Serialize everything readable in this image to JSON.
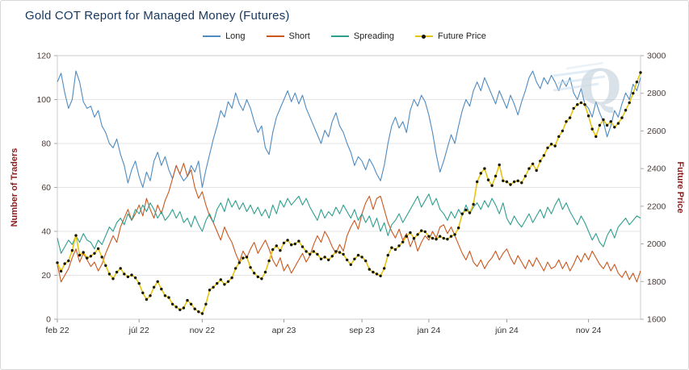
{
  "watermark": {
    "letter": "Q"
  },
  "legend": [
    {
      "label": "Long",
      "color": "#4f8bc0"
    },
    {
      "label": "Short",
      "color": "#c9571d"
    },
    {
      "label": "Spreading",
      "color": "#2f9e8f"
    },
    {
      "label": "Future Price",
      "color": "#e6c510",
      "marker": "#141400"
    }
  ],
  "chart_data": {
    "type": "line",
    "title": "Gold COT Report for Managed Money (Futures)",
    "x_axis": {
      "unit": "weekly COT report dates (feb 2022 - feb 2025)",
      "ticks": [
        {
          "label": "feb 22",
          "index": 0
        },
        {
          "label": "júl 22",
          "index": 22
        },
        {
          "label": "nov 22",
          "index": 39
        },
        {
          "label": "apr 23",
          "index": 61
        },
        {
          "label": "sep 23",
          "index": 82
        },
        {
          "label": "jan 24",
          "index": 100
        },
        {
          "label": "jún 24",
          "index": 121
        },
        {
          "label": "nov 24",
          "index": 143
        }
      ]
    },
    "y_left": {
      "label": "Number of Traders",
      "range": [
        0,
        120
      ],
      "ticks": [
        0,
        20,
        40,
        60,
        80,
        100,
        120
      ]
    },
    "y_right": {
      "label": "Future Price",
      "range": [
        1600,
        3000
      ],
      "ticks": [
        1600,
        1800,
        2000,
        2200,
        2400,
        2600,
        2800,
        3000
      ]
    },
    "grid": "horizontal",
    "legend_position": "top-center",
    "series": [
      {
        "name": "Long",
        "axis": "left",
        "color": "#4f8bc0",
        "width": 1.1,
        "values": [
          108,
          112,
          103,
          96,
          100,
          113,
          108,
          99,
          96,
          97,
          92,
          95,
          88,
          85,
          80,
          78,
          82,
          75,
          70,
          62,
          68,
          72,
          65,
          60,
          67,
          63,
          72,
          76,
          70,
          74,
          68,
          64,
          70,
          66,
          63,
          65,
          70,
          67,
          72,
          60,
          68,
          75,
          82,
          88,
          95,
          92,
          99,
          96,
          103,
          98,
          95,
          100,
          96,
          90,
          85,
          88,
          78,
          75,
          85,
          92,
          96,
          100,
          104,
          99,
          103,
          98,
          102,
          96,
          92,
          88,
          84,
          80,
          86,
          83,
          90,
          94,
          88,
          85,
          80,
          76,
          70,
          74,
          72,
          68,
          73,
          70,
          66,
          63,
          70,
          80,
          88,
          92,
          87,
          90,
          85,
          95,
          100,
          97,
          102,
          99,
          93,
          85,
          75,
          67,
          72,
          78,
          84,
          80,
          88,
          95,
          100,
          97,
          104,
          108,
          104,
          110,
          106,
          102,
          98,
          104,
          100,
          96,
          102,
          98,
          93,
          99,
          104,
          110,
          113,
          108,
          105,
          110,
          107,
          111,
          108,
          104,
          109,
          106,
          110,
          103,
          100,
          105,
          98,
          96,
          92,
          99,
          94,
          90,
          83,
          88,
          95,
          92,
          98,
          103,
          100,
          107,
          104,
          110
        ]
      },
      {
        "name": "Short",
        "axis": "left",
        "color": "#c9571d",
        "width": 1.1,
        "values": [
          25,
          17,
          20,
          23,
          28,
          32,
          26,
          30,
          27,
          24,
          26,
          22,
          25,
          30,
          34,
          38,
          35,
          42,
          46,
          50,
          45,
          48,
          52,
          47,
          55,
          50,
          46,
          52,
          48,
          54,
          58,
          64,
          70,
          66,
          71,
          65,
          68,
          60,
          55,
          58,
          52,
          47,
          44,
          40,
          36,
          42,
          38,
          35,
          30,
          26,
          31,
          28,
          32,
          35,
          30,
          33,
          36,
          32,
          27,
          24,
          28,
          22,
          25,
          21,
          24,
          27,
          30,
          26,
          29,
          34,
          38,
          35,
          40,
          37,
          33,
          30,
          34,
          31,
          38,
          42,
          45,
          41,
          48,
          53,
          56,
          50,
          55,
          56,
          50,
          44,
          40,
          37,
          41,
          36,
          39,
          33,
          37,
          31,
          35,
          38,
          36,
          40,
          37,
          42,
          43,
          39,
          42,
          38,
          34,
          30,
          27,
          31,
          26,
          24,
          27,
          23,
          26,
          28,
          31,
          27,
          30,
          32,
          28,
          25,
          29,
          26,
          23,
          27,
          24,
          28,
          25,
          22,
          26,
          23,
          24,
          27,
          23,
          26,
          22,
          25,
          29,
          26,
          30,
          27,
          31,
          28,
          25,
          23,
          26,
          22,
          25,
          21,
          19,
          22,
          18,
          21,
          17,
          22
        ]
      },
      {
        "name": "Spreading",
        "axis": "left",
        "color": "#2f9e8f",
        "width": 1.1,
        "values": [
          37,
          30,
          33,
          36,
          34,
          38,
          35,
          39,
          36,
          35,
          32,
          36,
          34,
          38,
          42,
          40,
          44,
          46,
          43,
          48,
          45,
          50,
          48,
          52,
          49,
          53,
          50,
          46,
          49,
          45,
          47,
          50,
          46,
          49,
          44,
          46,
          42,
          47,
          43,
          40,
          45,
          48,
          44,
          50,
          53,
          49,
          55,
          51,
          54,
          50,
          53,
          49,
          52,
          48,
          51,
          47,
          50,
          46,
          52,
          48,
          54,
          51,
          55,
          52,
          54,
          56,
          52,
          55,
          51,
          48,
          45,
          50,
          46,
          49,
          47,
          51,
          48,
          52,
          49,
          46,
          50,
          45,
          48,
          44,
          47,
          42,
          46,
          40,
          44,
          38,
          43,
          45,
          48,
          44,
          47,
          50,
          53,
          56,
          51,
          54,
          57,
          52,
          55,
          50,
          48,
          45,
          49,
          46,
          50,
          47,
          52,
          48,
          51,
          53,
          50,
          54,
          51,
          55,
          52,
          48,
          53,
          46,
          43,
          47,
          44,
          42,
          45,
          48,
          44,
          47,
          50,
          46,
          51,
          48,
          52,
          55,
          50,
          53,
          49,
          46,
          43,
          47,
          44,
          40,
          36,
          39,
          35,
          33,
          38,
          41,
          37,
          42,
          44,
          46,
          43,
          45,
          47,
          46
        ]
      },
      {
        "name": "Future Price",
        "axis": "right",
        "color": "#e6c510",
        "width": 1.6,
        "marker_color": "#141400",
        "values": [
          1900,
          1855,
          1895,
          1910,
          1965,
          2045,
          1940,
          1955,
          1925,
          1935,
          1950,
          1975,
          1930,
          1885,
          1840,
          1815,
          1850,
          1870,
          1840,
          1825,
          1835,
          1820,
          1790,
          1740,
          1705,
          1725,
          1770,
          1800,
          1760,
          1725,
          1715,
          1680,
          1665,
          1650,
          1660,
          1700,
          1680,
          1655,
          1640,
          1630,
          1680,
          1755,
          1770,
          1790,
          1810,
          1785,
          1800,
          1820,
          1870,
          1900,
          1925,
          1930,
          1875,
          1845,
          1825,
          1815,
          1850,
          1910,
          1970,
          1990,
          1965,
          2005,
          2020,
          1995,
          2000,
          2015,
          1985,
          1960,
          1945,
          1960,
          1945,
          1920,
          1930,
          1915,
          1935,
          1960,
          1955,
          1945,
          1915,
          1890,
          1920,
          1940,
          1930,
          1910,
          1865,
          1850,
          1840,
          1830,
          1870,
          1940,
          1980,
          1970,
          1990,
          2010,
          2040,
          2060,
          2030,
          2050,
          2070,
          2065,
          2040,
          2030,
          2025,
          2040,
          2030,
          2025,
          2040,
          2050,
          2085,
          2160,
          2180,
          2165,
          2210,
          2330,
          2375,
          2400,
          2340,
          2310,
          2360,
          2420,
          2335,
          2330,
          2315,
          2330,
          2335,
          2325,
          2360,
          2400,
          2425,
          2390,
          2440,
          2470,
          2510,
          2530,
          2520,
          2570,
          2600,
          2650,
          2670,
          2720,
          2740,
          2750,
          2740,
          2680,
          2610,
          2570,
          2630,
          2660,
          2630,
          2650,
          2620,
          2640,
          2670,
          2710,
          2750,
          2800,
          2860,
          2910
        ]
      }
    ]
  }
}
